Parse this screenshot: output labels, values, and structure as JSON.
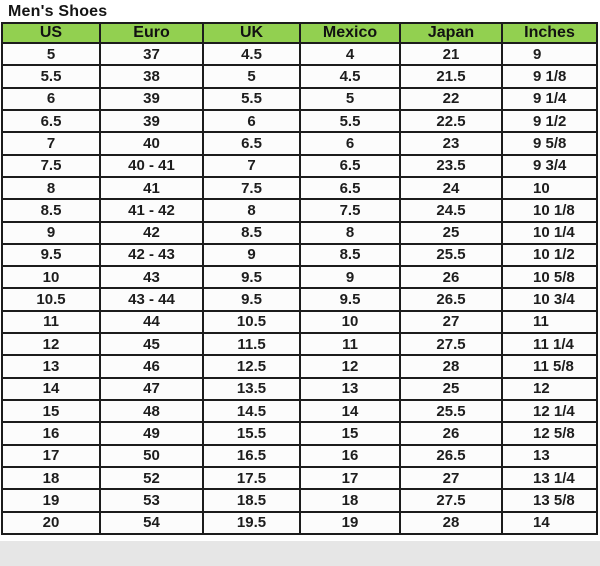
{
  "title": "Men's Shoes",
  "chart_data": {
    "type": "table",
    "title": "Men's Shoes",
    "columns": [
      "US",
      "Euro",
      "UK",
      "Mexico",
      "Japan",
      "Inches"
    ],
    "rows": [
      [
        "5",
        "37",
        "4.5",
        "4",
        "21",
        "9"
      ],
      [
        "5.5",
        "38",
        "5",
        "4.5",
        "21.5",
        "9 1/8"
      ],
      [
        "6",
        "39",
        "5.5",
        "5",
        "22",
        "9 1/4"
      ],
      [
        "6.5",
        "39",
        "6",
        "5.5",
        "22.5",
        "9 1/2"
      ],
      [
        "7",
        "40",
        "6.5",
        "6",
        "23",
        "9 5/8"
      ],
      [
        "7.5",
        "40 - 41",
        "7",
        "6.5",
        "23.5",
        "9 3/4"
      ],
      [
        "8",
        "41",
        "7.5",
        "6.5",
        "24",
        "10"
      ],
      [
        "8.5",
        "41 - 42",
        "8",
        "7.5",
        "24.5",
        "10 1/8"
      ],
      [
        "9",
        "42",
        "8.5",
        "8",
        "25",
        "10 1/4"
      ],
      [
        "9.5",
        "42 - 43",
        "9",
        "8.5",
        "25.5",
        "10 1/2"
      ],
      [
        "10",
        "43",
        "9.5",
        "9",
        "26",
        "10 5/8"
      ],
      [
        "10.5",
        "43 - 44",
        "9.5",
        "9.5",
        "26.5",
        "10 3/4"
      ],
      [
        "11",
        "44",
        "10.5",
        "10",
        "27",
        "11"
      ],
      [
        "12",
        "45",
        "11.5",
        "11",
        "27.5",
        "11 1/4"
      ],
      [
        "13",
        "46",
        "12.5",
        "12",
        "28",
        "11 5/8"
      ],
      [
        "14",
        "47",
        "13.5",
        "13",
        "25",
        "12"
      ],
      [
        "15",
        "48",
        "14.5",
        "14",
        "25.5",
        "12 1/4"
      ],
      [
        "16",
        "49",
        "15.5",
        "15",
        "26",
        "12 5/8"
      ],
      [
        "17",
        "50",
        "16.5",
        "16",
        "26.5",
        "13"
      ],
      [
        "18",
        "52",
        "17.5",
        "17",
        "27",
        "13 1/4"
      ],
      [
        "19",
        "53",
        "18.5",
        "18",
        "27.5",
        "13 5/8"
      ],
      [
        "20",
        "54",
        "19.5",
        "19",
        "28",
        "14"
      ]
    ],
    "layout": {
      "header_position": "top",
      "grid": true,
      "column_alignments": [
        "center",
        "center",
        "center",
        "center",
        "center",
        "left"
      ]
    }
  },
  "colors": {
    "header_bg": "#92D050",
    "border": "#1c1c1c",
    "text": "#1d1d1d",
    "page_bg": "#ffffff",
    "bottom_band_bg": "#e6e6e6"
  }
}
